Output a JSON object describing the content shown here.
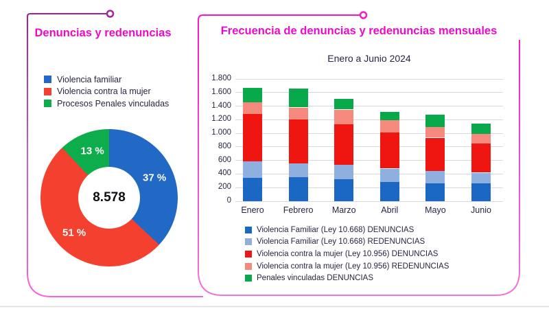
{
  "page": {
    "background": "#ffffff",
    "accent_magenta": "#ee0bc7",
    "text_color": "#252540",
    "gridline_color": "#d8d8d8",
    "left_panel_border": {
      "start": "#9c2099",
      "end": "#f863d8"
    },
    "right_panel_border": {
      "start": "#f816c4",
      "end": "#f175d8"
    }
  },
  "left_panel": {
    "title": "Denuncias y redenuncias",
    "legend": [
      {
        "label": "Violencia familiar",
        "color": "#2268c5"
      },
      {
        "label": "Violencia contra la mujer",
        "color": "#f4402f"
      },
      {
        "label": "Procesos Penales vinculadas",
        "color": "#0ead4b"
      }
    ],
    "donut_center_value": "8.578"
  },
  "right_panel": {
    "title": "Frecuencia de denuncias y redenuncias mensuales",
    "subtitle": "Enero a Junio 2024"
  },
  "chart_data": [
    {
      "type": "pie",
      "title": "Denuncias y redenuncias",
      "donut": true,
      "total_label": "8.578",
      "slices": [
        {
          "name": "Violencia familiar",
          "pct_label": "37 %",
          "value_pct": 37,
          "color": "#2268c5"
        },
        {
          "name": "Violencia contra la mujer",
          "pct_label": "51 %",
          "value_pct": 51,
          "color": "#f4402f"
        },
        {
          "name": "Procesos Penales vinculadas",
          "pct_label": "13 %",
          "value_pct": 13,
          "color": "#0ead4b"
        }
      ]
    },
    {
      "type": "bar",
      "stacked": true,
      "title": "Frecuencia de denuncias y redenuncias mensuales",
      "subtitle": "Enero a Junio 2024",
      "categories": [
        "Enero",
        "Febrero",
        "Marzo",
        "Abril",
        "Mayo",
        "Junio"
      ],
      "series": [
        {
          "name": "Violencia Familiar (Ley 10.668) DENUNCIAS",
          "color": "#1a67c4",
          "values": [
            340,
            355,
            320,
            280,
            265,
            265
          ]
        },
        {
          "name": "Violencia Familiar (Ley 10.668) REDENUNCIAS",
          "color": "#8fafdf",
          "values": [
            245,
            205,
            215,
            200,
            180,
            155
          ]
        },
        {
          "name": "Violencia contra la mujer (Ley 10.956) DENUNCIAS",
          "color": "#ef1511",
          "values": [
            700,
            640,
            595,
            530,
            490,
            425
          ]
        },
        {
          "name": "Violencia contra la mujer (Ley 10.956) REDENUNCIAS",
          "color": "#f6897e",
          "values": [
            170,
            180,
            220,
            180,
            160,
            145
          ]
        },
        {
          "name": "Penales vinculadas DENUNCIAS",
          "color": "#07a94b",
          "values": [
            215,
            275,
            155,
            130,
            180,
            150
          ]
        }
      ],
      "totals": [
        1670,
        1655,
        1505,
        1320,
        1275,
        1140
      ],
      "ylim": [
        0,
        1800
      ],
      "y_tick_step": 200,
      "y_tick_labels": [
        "0",
        "200",
        "400",
        "600",
        "800",
        "1.000",
        "1.200",
        "1.400",
        "1.600",
        "1.800"
      ],
      "grid": true,
      "legend_position": "bottom"
    }
  ]
}
